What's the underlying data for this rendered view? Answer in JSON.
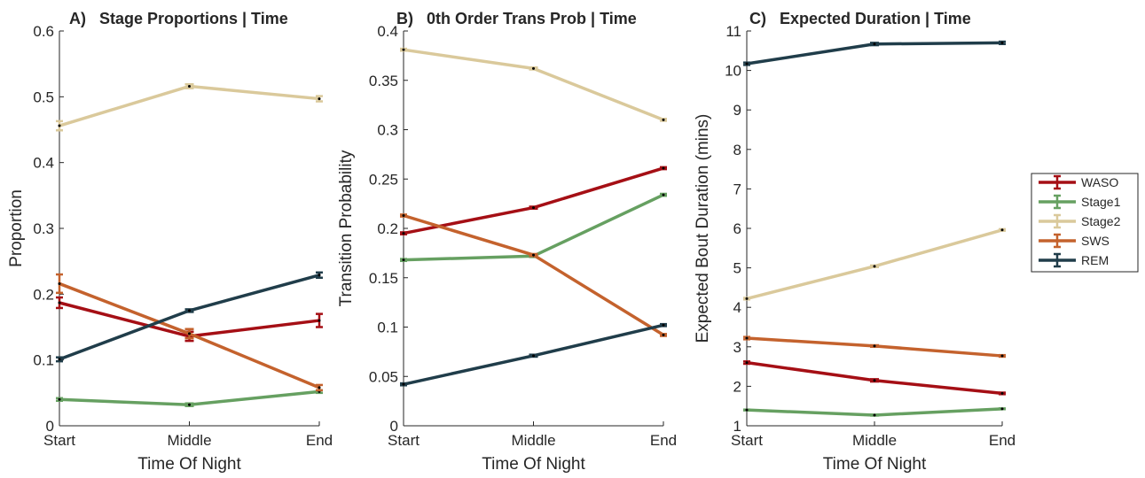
{
  "colors": {
    "WASO": "#a50f15",
    "Stage1": "#66a061",
    "Stage2": "#dac99b",
    "SWS": "#c4622d",
    "REM": "#203d4a",
    "axis": "#262626"
  },
  "legend": {
    "placement": "right",
    "items": [
      "WASO",
      "Stage1",
      "Stage2",
      "SWS",
      "REM"
    ]
  },
  "chart_data": [
    {
      "type": "line",
      "title": "A)   Stage Proportions | Time",
      "xlabel": "Time Of Night",
      "ylabel": "Proportion",
      "categories": [
        "Start",
        "Middle",
        "End"
      ],
      "ylim": [
        0,
        0.6
      ],
      "yticks": [
        "0",
        "0.1",
        "0.2",
        "0.3",
        "0.4",
        "0.5",
        "0.6"
      ],
      "error_bars": true,
      "series": [
        {
          "name": "WASO",
          "values": [
            0.187,
            0.136,
            0.16
          ],
          "errors": [
            0.008,
            0.007,
            0.01
          ]
        },
        {
          "name": "Stage1",
          "values": [
            0.04,
            0.032,
            0.052
          ],
          "errors": [
            0.002,
            0.002,
            0.002
          ]
        },
        {
          "name": "Stage2",
          "values": [
            0.456,
            0.516,
            0.497
          ],
          "errors": [
            0.007,
            0.003,
            0.004
          ]
        },
        {
          "name": "SWS",
          "values": [
            0.216,
            0.14,
            0.058
          ],
          "errors": [
            0.014,
            0.007,
            0.004
          ]
        },
        {
          "name": "REM",
          "values": [
            0.101,
            0.175,
            0.229
          ],
          "errors": [
            0.003,
            0.002,
            0.004
          ]
        }
      ]
    },
    {
      "type": "line",
      "title": "B)   0th Order Trans Prob | Time",
      "xlabel": "Time Of Night",
      "ylabel": "Transition Probability",
      "categories": [
        "Start",
        "Middle",
        "End"
      ],
      "ylim": [
        0,
        0.4
      ],
      "yticks": [
        "0",
        "0.05",
        "0.1",
        "0.15",
        "0.2",
        "0.25",
        "0.3",
        "0.35",
        "0.4"
      ],
      "error_bars": true,
      "series": [
        {
          "name": "WASO",
          "values": [
            0.195,
            0.221,
            0.261
          ],
          "errors": [
            0.001,
            0.001,
            0.001
          ]
        },
        {
          "name": "Stage1",
          "values": [
            0.168,
            0.172,
            0.234
          ],
          "errors": [
            0.001,
            0.001,
            0.001
          ]
        },
        {
          "name": "Stage2",
          "values": [
            0.381,
            0.362,
            0.31
          ],
          "errors": [
            0.001,
            0.001,
            0.001
          ]
        },
        {
          "name": "SWS",
          "values": [
            0.213,
            0.173,
            0.092
          ],
          "errors": [
            0.001,
            0.001,
            0.001
          ]
        },
        {
          "name": "REM",
          "values": [
            0.042,
            0.071,
            0.102
          ],
          "errors": [
            0.001,
            0.001,
            0.001
          ]
        }
      ]
    },
    {
      "type": "line",
      "title": "C)   Expected Duration | Time",
      "xlabel": "Time Of Night",
      "ylabel": "Expected Bout Duration (mins)",
      "categories": [
        "Start",
        "Middle",
        "End"
      ],
      "ylim": [
        1,
        11
      ],
      "yticks": [
        "1",
        "2",
        "3",
        "4",
        "5",
        "6",
        "7",
        "8",
        "9",
        "10",
        "11"
      ],
      "error_bars": true,
      "series": [
        {
          "name": "WASO",
          "values": [
            2.6,
            2.15,
            1.82
          ],
          "errors": [
            0.03,
            0.03,
            0.02
          ]
        },
        {
          "name": "Stage1",
          "values": [
            1.4,
            1.27,
            1.43
          ],
          "errors": [
            0.01,
            0.01,
            0.01
          ]
        },
        {
          "name": "Stage2",
          "values": [
            4.22,
            5.04,
            5.96
          ],
          "errors": [
            0.02,
            0.02,
            0.02
          ]
        },
        {
          "name": "SWS",
          "values": [
            3.22,
            3.02,
            2.77
          ],
          "errors": [
            0.03,
            0.02,
            0.02
          ]
        },
        {
          "name": "REM",
          "values": [
            10.17,
            10.67,
            10.7
          ],
          "errors": [
            0.03,
            0.03,
            0.03
          ]
        }
      ]
    }
  ]
}
